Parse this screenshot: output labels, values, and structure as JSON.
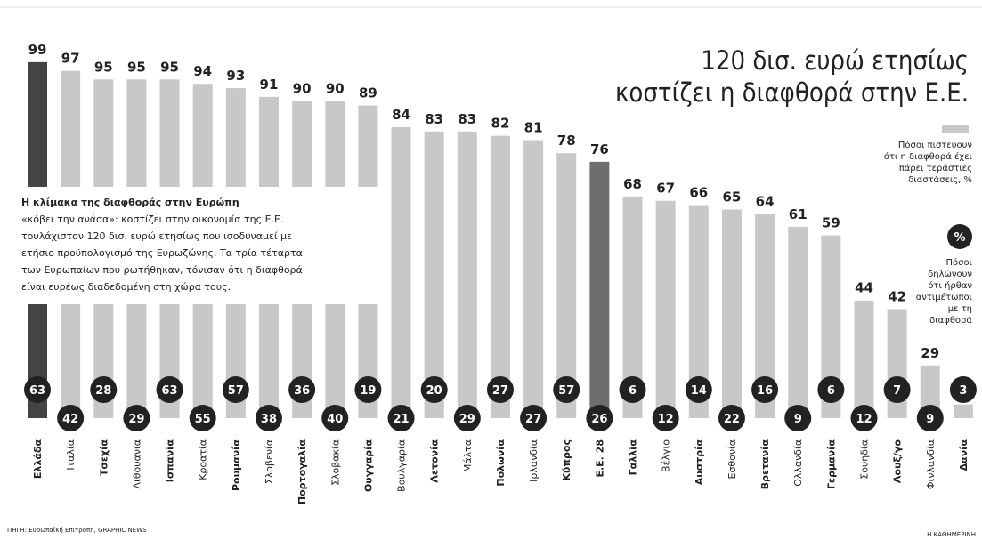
{
  "chart_data": {
    "type": "bar",
    "title": [
      "120 δισ. ευρώ ετησίως",
      "κοστίζει η διαφθορά στην Ε.Ε."
    ],
    "categories": [
      "Ελλάδα",
      "Ιταλία",
      "Τσεχία",
      "Λιθουανία",
      "Ισπανία",
      "Κροατία",
      "Ρουμανία",
      "Σλοβενία",
      "Πορτογαλία",
      "Σλοβακία",
      "Ουγγαρία",
      "Βουλγαρία",
      "Λετονία",
      "Μάλτα",
      "Πολωνία",
      "Ιρλανδία",
      "Κύπρος",
      "Ε.Ε. 28",
      "Γαλλία",
      "Βέλγιο",
      "Αυστρία",
      "Εσθονία",
      "Βρετανία",
      "Ολλανδία",
      "Γερμανία",
      "Σουηδία",
      "Λουξ/γο",
      "Φινλανδία",
      "Δανία"
    ],
    "series": [
      {
        "name": [
          "Πόσοι πιστεύουν",
          "ότι η διαφθορά έχει",
          "πάρει τεράστιες",
          "διαστάσεις, %"
        ],
        "color": "#c8c8c8",
        "colors": [
          "#444444",
          "#c8c8c8",
          "#c8c8c8",
          "#c8c8c8",
          "#c8c8c8",
          "#c8c8c8",
          "#c8c8c8",
          "#c8c8c8",
          "#c8c8c8",
          "#c8c8c8",
          "#c8c8c8",
          "#c8c8c8",
          "#c8c8c8",
          "#c8c8c8",
          "#c8c8c8",
          "#c8c8c8",
          "#c8c8c8",
          "#6e6e6e",
          "#c8c8c8",
          "#c8c8c8",
          "#c8c8c8",
          "#c8c8c8",
          "#c8c8c8",
          "#c8c8c8",
          "#c8c8c8",
          "#c8c8c8",
          "#c8c8c8",
          "#c8c8c8",
          "#c8c8c8"
        ],
        "values": [
          99,
          97,
          95,
          95,
          95,
          94,
          93,
          91,
          90,
          90,
          89,
          84,
          83,
          83,
          82,
          81,
          78,
          76,
          68,
          67,
          66,
          65,
          64,
          61,
          59,
          44,
          42,
          29,
          20
        ]
      },
      {
        "name": [
          "Πόσοι",
          "δηλώνουν",
          "ότι ήρθαν",
          "αντιμέτωποι",
          "με τη",
          "διαφθορά"
        ],
        "symbol": "%",
        "color": "#222222",
        "values": [
          63,
          42,
          28,
          29,
          63,
          55,
          57,
          38,
          36,
          40,
          19,
          21,
          20,
          29,
          27,
          27,
          57,
          26,
          6,
          12,
          14,
          22,
          16,
          9,
          6,
          12,
          7,
          9,
          3
        ]
      }
    ],
    "ylim": [
      0,
      100
    ],
    "note": [
      "Η κλίμακα της διαφθοράς στην Ευρώπη",
      "«κόβει την ανάσα»: κοστίζει στην οικονομία της Ε.Ε.",
      "τουλάχιστον 120 δισ. ευρώ ετησίως που ισοδυναμεί με",
      "ετήσιο προϋπολογισμό της Ευρωζώνης. Τα τρία τέταρτα",
      "των Ευρωπαίων που ρωτήθηκαν, τόνισαν ότι η διαφθορά",
      "είναι ευρέως διαδεδομένη στη χώρα τους."
    ],
    "source": "ΠΗΓΗ: Ευρωπαϊκή Επιτροπή, GRAPHIC NEWS",
    "publisher": "Η ΚΑΘΗΜΕΡΙΝΗ"
  }
}
